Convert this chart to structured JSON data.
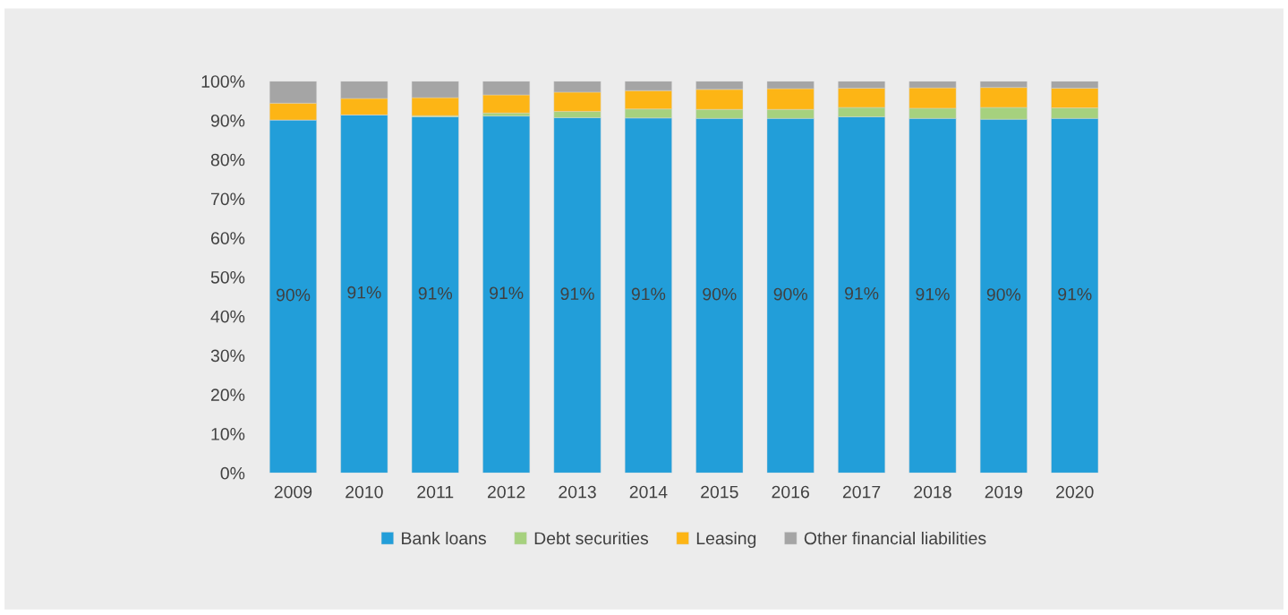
{
  "chart_data": {
    "type": "bar",
    "stacked": true,
    "categories": [
      "2009",
      "2010",
      "2011",
      "2012",
      "2013",
      "2014",
      "2015",
      "2016",
      "2017",
      "2018",
      "2019",
      "2020"
    ],
    "series": [
      {
        "name": "Bank loans",
        "color": "#229ed9",
        "values": [
          90.1,
          91.4,
          90.9,
          91.1,
          90.7,
          90.6,
          90.5,
          90.5,
          90.9,
          90.5,
          90.3,
          90.5
        ],
        "value_labels": [
          "90%",
          "91%",
          "91%",
          "91%",
          "91%",
          "91%",
          "90%",
          "90%",
          "91%",
          "91%",
          "90%",
          "91%"
        ]
      },
      {
        "name": "Debt securities",
        "color": "#a6d17e",
        "values": [
          0,
          0,
          0.3,
          0.8,
          1.6,
          2.3,
          2.3,
          2.3,
          2.4,
          2.6,
          3.0,
          2.7
        ]
      },
      {
        "name": "Leasing",
        "color": "#fdb515",
        "values": [
          4.3,
          4.2,
          4.6,
          4.6,
          4.9,
          4.7,
          5.1,
          5.3,
          4.9,
          5.2,
          5.1,
          5.0
        ]
      },
      {
        "name": "Other financial liabilities",
        "color": "#a5a5a5",
        "values": [
          5.6,
          4.4,
          4.2,
          3.5,
          2.8,
          2.4,
          2.1,
          1.9,
          1.8,
          1.7,
          1.6,
          1.8
        ]
      }
    ],
    "ylim": [
      0,
      100
    ],
    "yticks": [
      {
        "value": 0,
        "label": "0%"
      },
      {
        "value": 10,
        "label": "10%"
      },
      {
        "value": 20,
        "label": "20%"
      },
      {
        "value": 30,
        "label": "30%"
      },
      {
        "value": 40,
        "label": "40%"
      },
      {
        "value": 50,
        "label": "50%"
      },
      {
        "value": 60,
        "label": "60%"
      },
      {
        "value": 70,
        "label": "70%"
      },
      {
        "value": 80,
        "label": "80%"
      },
      {
        "value": 90,
        "label": "90%"
      },
      {
        "value": 100,
        "label": "100%"
      }
    ],
    "grid": false,
    "legend": "bottom"
  }
}
